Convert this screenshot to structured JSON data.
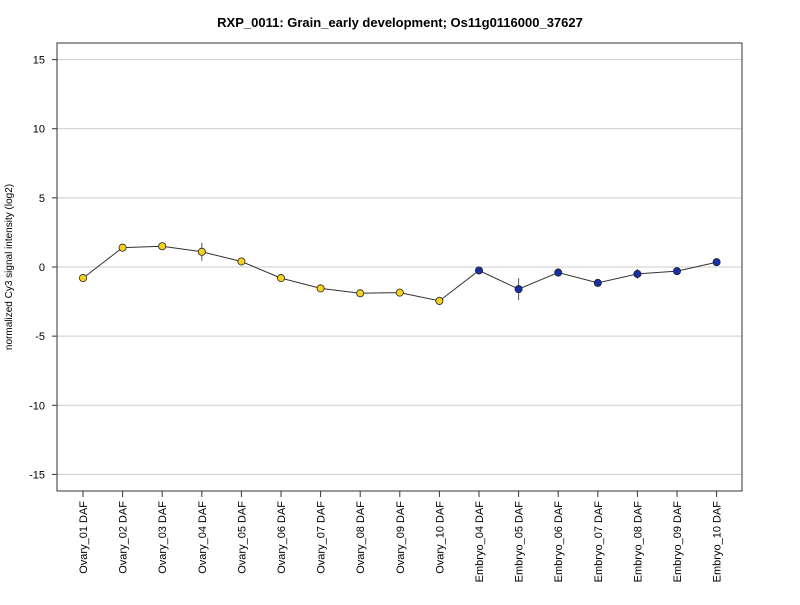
{
  "chart_data": {
    "type": "line",
    "title": "RXP_0011: Grain_early development; Os11g0116000_37627",
    "xlabel": "",
    "ylabel": "normalized Cy3 signal intensity (log2)",
    "ylim": [
      -16.2,
      16.2
    ],
    "yticks": [
      15,
      10,
      5,
      0,
      -5,
      -10,
      -15
    ],
    "grid": true,
    "legend": "none",
    "colors": {
      "ovary": "#f5d21f",
      "embryo": "#1530a8",
      "line": "#333333",
      "grid": "#cccccc"
    },
    "categories": [
      "Ovary_01 DAF",
      "Ovary_02 DAF",
      "Ovary_03 DAF",
      "Ovary_04 DAF",
      "Ovary_05 DAF",
      "Ovary_06 DAF",
      "Ovary_07 DAF",
      "Ovary_08 DAF",
      "Ovary_09 DAF",
      "Ovary_10 DAF",
      "Embryo_04 DAF",
      "Embryo_05 DAF",
      "Embryo_06 DAF",
      "Embryo_07 DAF",
      "Embryo_08 DAF",
      "Embryo_09 DAF",
      "Embryo_10 DAF"
    ],
    "groups": [
      "ovary",
      "ovary",
      "ovary",
      "ovary",
      "ovary",
      "ovary",
      "ovary",
      "ovary",
      "ovary",
      "ovary",
      "embryo",
      "embryo",
      "embryo",
      "embryo",
      "embryo",
      "embryo",
      "embryo"
    ],
    "values": [
      -0.8,
      1.4,
      1.5,
      1.1,
      0.4,
      -0.8,
      -1.55,
      -1.9,
      -1.85,
      -2.45,
      -0.25,
      -1.6,
      -0.4,
      -1.15,
      -0.5,
      -0.3,
      0.35
    ],
    "error": [
      0.1,
      0.1,
      0.1,
      0.65,
      0.1,
      0.1,
      0.1,
      0.25,
      0.1,
      0.3,
      0.1,
      0.8,
      0.3,
      0.1,
      0.35,
      0.1,
      0.1
    ]
  }
}
